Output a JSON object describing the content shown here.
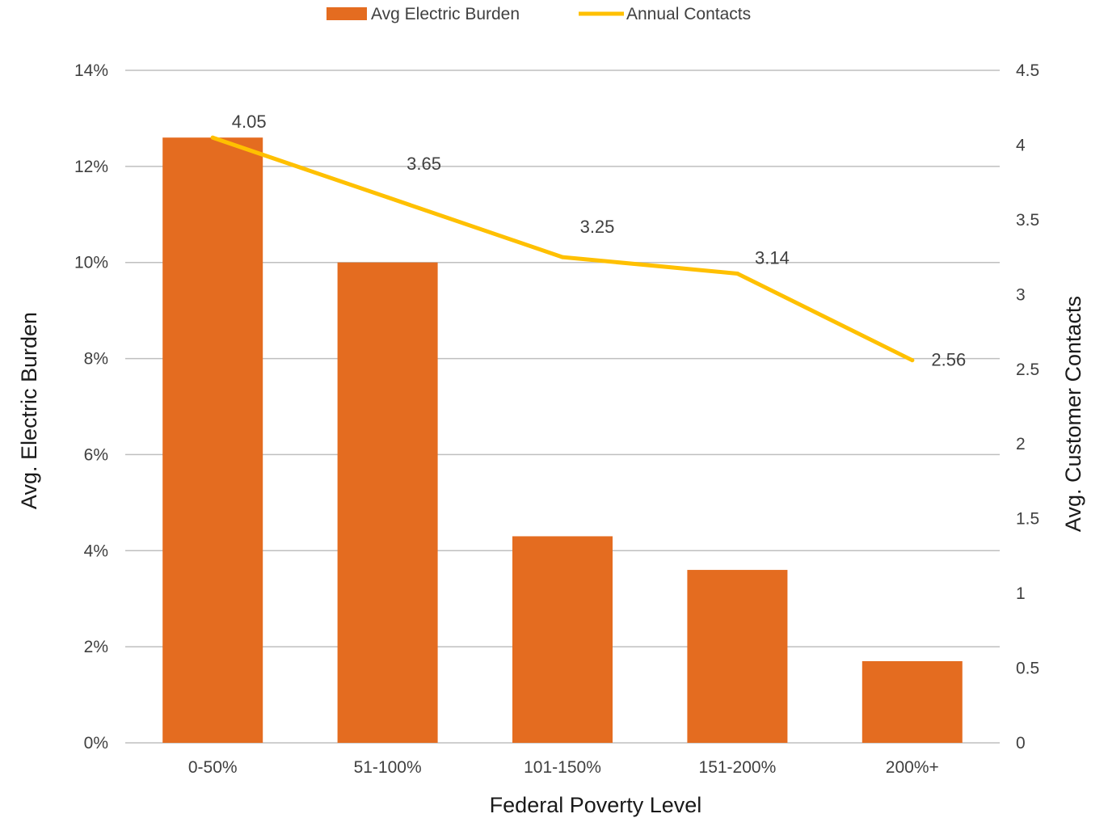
{
  "chart_data": {
    "type": "bar",
    "categories": [
      "0-50%",
      "51-100%",
      "101-150%",
      "151-200%",
      "200%+"
    ],
    "series": [
      {
        "name": "Avg Electric Burden",
        "type": "bar",
        "axis": "left",
        "values": [
          12.6,
          10.0,
          4.3,
          3.6,
          1.7
        ],
        "color": "#e46c20"
      },
      {
        "name": "Annual Contacts",
        "type": "line",
        "axis": "right",
        "values": [
          4.05,
          3.65,
          3.25,
          3.14,
          2.56
        ],
        "data_labels": [
          "4.05",
          "3.65",
          "3.25",
          "3.14",
          "2.56"
        ],
        "color": "#ffc000"
      }
    ],
    "xlabel": "Federal Poverty Level",
    "ylabel": "Avg. Electric Burden",
    "y2label": "Avg. Customer Contacts",
    "ylim": [
      0,
      14
    ],
    "y2lim": [
      0,
      4.5
    ],
    "yticks": [
      "0%",
      "2%",
      "4%",
      "6%",
      "8%",
      "10%",
      "12%",
      "14%"
    ],
    "y2ticks": [
      "0",
      "0.5",
      "1",
      "1.5",
      "2",
      "2.5",
      "3",
      "3.5",
      "4",
      "4.5"
    ],
    "grid": true,
    "legend_position": "top"
  }
}
